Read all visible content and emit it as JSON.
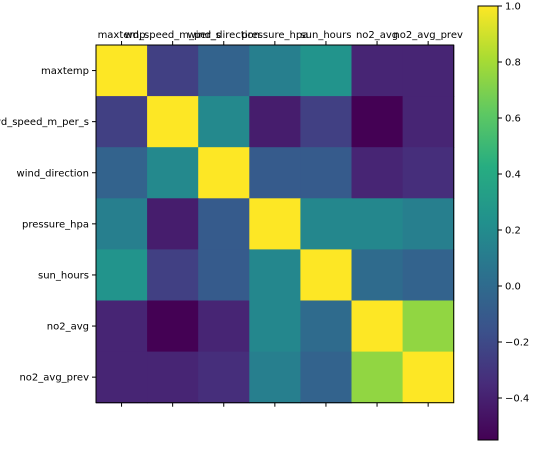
{
  "chart_data": {
    "type": "heatmap",
    "title": "",
    "xlabel": "",
    "ylabel": "",
    "variables": [
      "maxtemp",
      "wd_speed_m_per_s",
      "wind_direction",
      "pressure_hpa",
      "sun_hours",
      "no2_avg",
      "no2_avg_prev"
    ],
    "x_labels": [
      "maxtemp",
      "wd_speed_m_per_s",
      "wind_direction",
      "pressure_hpa",
      "sun_hours",
      "no2_avg",
      "no2_avg_prev"
    ],
    "y_labels": [
      "maxtemp",
      "wd_speed_m_per_s",
      "wind_direction",
      "pressure_hpa",
      "sun_hours",
      "no2_avg",
      "no2_avg_prev"
    ],
    "x_axis_position": "top",
    "matrix": [
      [
        1.0,
        -0.25,
        -0.05,
        0.12,
        0.25,
        -0.38,
        -0.38
      ],
      [
        -0.25,
        1.0,
        0.18,
        -0.42,
        -0.25,
        -0.55,
        -0.38
      ],
      [
        -0.05,
        0.18,
        1.0,
        -0.1,
        -0.1,
        -0.38,
        -0.34
      ],
      [
        0.12,
        -0.42,
        -0.1,
        1.0,
        0.17,
        0.17,
        0.12
      ],
      [
        0.25,
        -0.25,
        -0.1,
        0.17,
        1.0,
        0.0,
        -0.05
      ],
      [
        -0.38,
        -0.55,
        -0.38,
        0.17,
        0.0,
        1.0,
        0.75
      ],
      [
        -0.38,
        -0.38,
        -0.34,
        0.12,
        -0.05,
        0.75,
        1.0
      ]
    ],
    "colormap": "viridis",
    "colorbar": {
      "range": [
        -0.55,
        1.0
      ],
      "ticks": [
        1.0,
        0.8,
        0.6,
        0.4,
        0.2,
        0.0,
        -0.2,
        -0.4
      ],
      "tick_labels": [
        "1.0",
        "0.8",
        "0.6",
        "0.4",
        "0.2",
        "0.0",
        "−0.2",
        "−0.4"
      ],
      "placement": "right"
    },
    "grid": false
  }
}
